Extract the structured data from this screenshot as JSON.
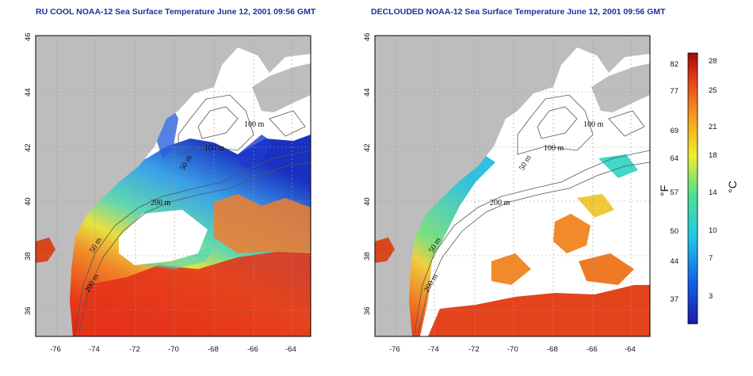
{
  "titles": {
    "left": "RU COOL NOAA-12 Sea Surface Temperature June 12, 2001 09:56 GMT",
    "right": "DECLOUDED NOAA-12 Sea Surface Temperature June 12, 2001 09:56 GMT"
  },
  "axes": {
    "x_ticks": [
      "-76",
      "-74",
      "-72",
      "-70",
      "-68",
      "-66",
      "-64"
    ],
    "y_ticks": [
      "36",
      "38",
      "40",
      "42",
      "44",
      "46"
    ],
    "x_range": [
      -77.2,
      -63.0
    ],
    "y_range": [
      35.0,
      46.0
    ]
  },
  "contour_labels": [
    "100 m",
    "100 m",
    "50 m",
    "200 m",
    "50 m",
    "200 m"
  ],
  "colorbar": {
    "fahrenheit_ticks": [
      "82",
      "77",
      "69",
      "64",
      "57",
      "50",
      "44",
      "37"
    ],
    "celsius_ticks": [
      "28",
      "25",
      "21",
      "18",
      "14",
      "10",
      "7",
      "3"
    ],
    "fahrenheit_unit": "°F",
    "celsius_unit": "°C",
    "range_c": [
      0,
      29
    ]
  },
  "colors": {
    "land": "#bdbdbd",
    "cloud": "#ffffff",
    "title": "#1f2f9e",
    "sst_warm": "#d8281c",
    "sst_cold": "#1a1aa8"
  }
}
